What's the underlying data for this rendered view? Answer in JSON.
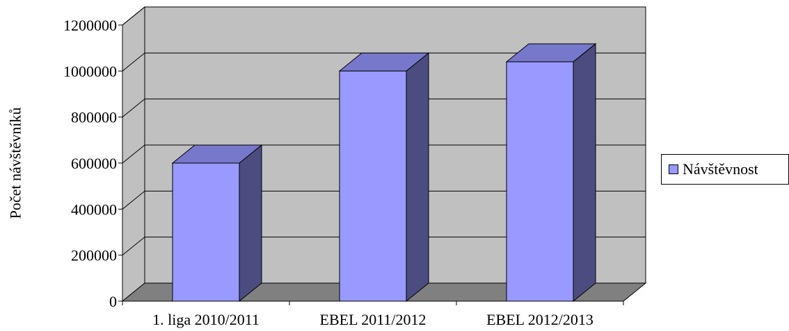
{
  "chart_data": {
    "type": "bar",
    "title": "",
    "xlabel": "",
    "ylabel": "Počet návštěvníků",
    "categories": [
      "1. liga 2010/2011",
      "EBEL 2011/2012",
      "EBEL 2012/2013"
    ],
    "series": [
      {
        "name": "Návštěvnost",
        "values": [
          600000,
          1000000,
          1040000
        ]
      }
    ],
    "ylim": [
      0,
      1200000
    ],
    "yticks": [
      "0",
      "200000",
      "400000",
      "600000",
      "800000",
      "1000000",
      "1200000"
    ],
    "grid": true,
    "legend_position": "right",
    "style": "3d",
    "colors": {
      "bar_front": "#9999ff",
      "bar_top": "#7777cc",
      "bar_side": "#4c4c80",
      "wall": "#c0c0c0",
      "floor": "#808080",
      "gridline": "#000000"
    }
  }
}
